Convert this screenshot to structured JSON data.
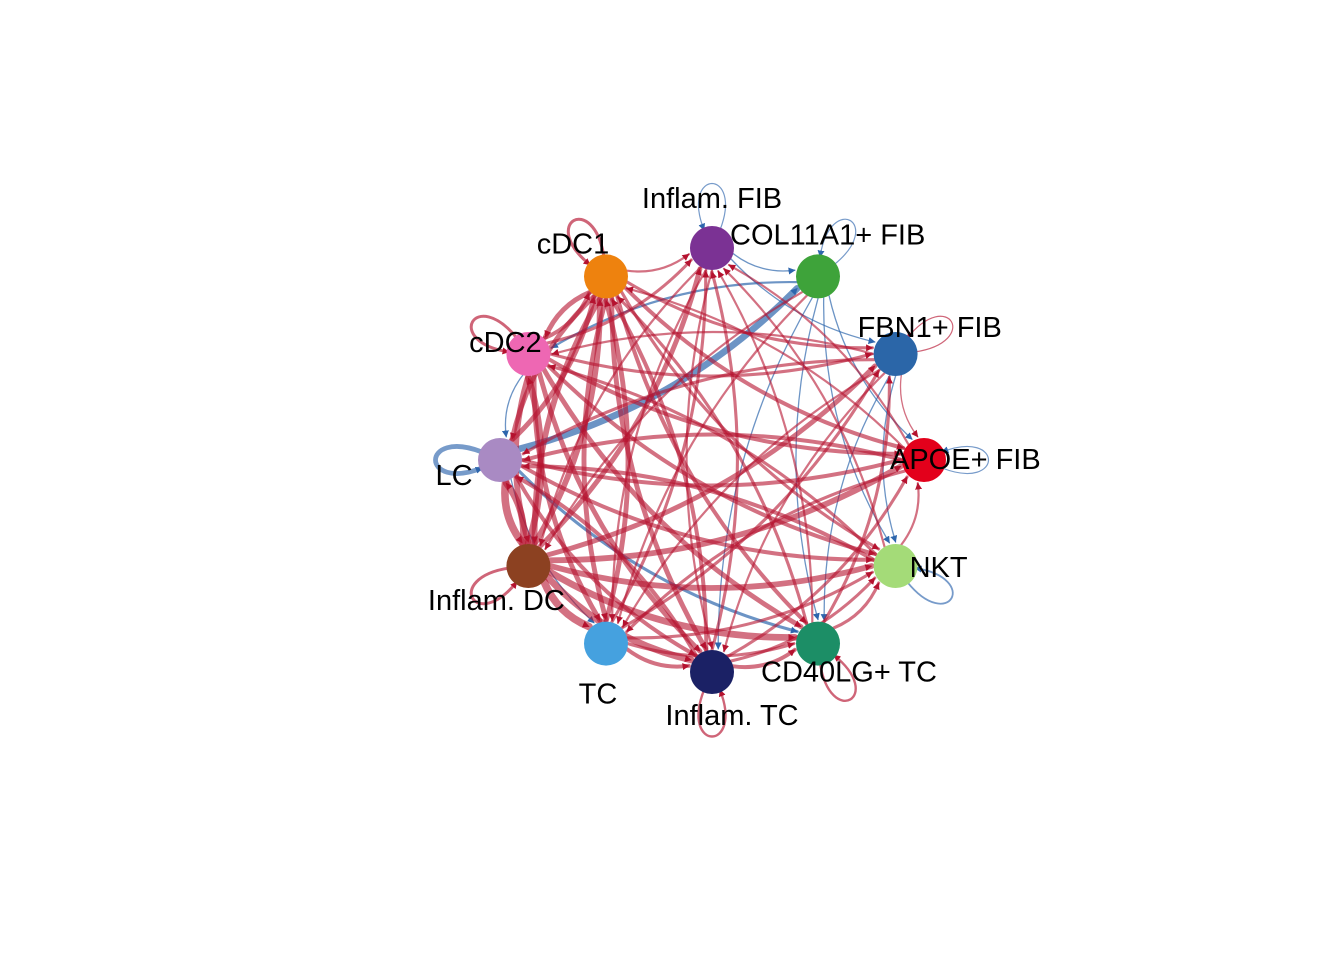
{
  "diagram": {
    "type": "circle-network",
    "edge_colors": {
      "increased": "#b5122f",
      "decreased": "#2e66ad"
    },
    "nodes": [
      {
        "id": "inflam_fib",
        "label": "Inflam. FIB",
        "color": "#7b3294"
      },
      {
        "id": "col11a1_fib",
        "label": "COL11A1+ FIB",
        "color": "#3ea33a"
      },
      {
        "id": "fbn1_fib",
        "label": "FBN1+ FIB",
        "color": "#2b66a8"
      },
      {
        "id": "apoe_fib",
        "label": "APOE+ FIB",
        "color": "#e3001b"
      },
      {
        "id": "nkt",
        "label": "NKT",
        "color": "#a4db78"
      },
      {
        "id": "cd40lg_tc",
        "label": "CD40LG+ TC",
        "color": "#1c8e66"
      },
      {
        "id": "inflam_tc",
        "label": "Inflam. TC",
        "color": "#1b2165"
      },
      {
        "id": "tc",
        "label": "TC",
        "color": "#45a1df"
      },
      {
        "id": "inflam_dc",
        "label": "Inflam. DC",
        "color": "#8c4121"
      },
      {
        "id": "lc",
        "label": "LC",
        "color": "#a98ac3"
      },
      {
        "id": "cdc2",
        "label": "cDC2",
        "color": "#ee67b3"
      },
      {
        "id": "cdc1",
        "label": "cDC1",
        "color": "#ee820e"
      }
    ],
    "self_loops": [
      {
        "node": "inflam_fib",
        "direction": "decreased",
        "weight": 1
      },
      {
        "node": "col11a1_fib",
        "direction": "decreased",
        "weight": 1
      },
      {
        "node": "fbn1_fib",
        "direction": "increased",
        "weight": 1
      },
      {
        "node": "apoe_fib",
        "direction": "decreased",
        "weight": 1
      },
      {
        "node": "nkt",
        "direction": "decreased",
        "weight": 2
      },
      {
        "node": "cd40lg_tc",
        "direction": "increased",
        "weight": 3
      },
      {
        "node": "inflam_tc",
        "direction": "increased",
        "weight": 3
      },
      {
        "node": "inflam_dc",
        "direction": "increased",
        "weight": 4
      },
      {
        "node": "lc",
        "direction": "decreased",
        "weight": 7
      },
      {
        "node": "cdc2",
        "direction": "increased",
        "weight": 4
      },
      {
        "node": "cdc1",
        "direction": "increased",
        "weight": 4
      }
    ],
    "edges": [
      {
        "from": "lc",
        "to": "col11a1_fib",
        "direction": "decreased",
        "weight": 7
      },
      {
        "from": "lc",
        "to": "cd40lg_tc",
        "direction": "decreased",
        "weight": 3
      },
      {
        "from": "col11a1_fib",
        "to": "cdc2",
        "direction": "decreased",
        "weight": 2
      },
      {
        "from": "col11a1_fib",
        "to": "nkt",
        "direction": "decreased",
        "weight": 1
      },
      {
        "from": "col11a1_fib",
        "to": "apoe_fib",
        "direction": "decreased",
        "weight": 1
      },
      {
        "from": "col11a1_fib",
        "to": "cd40lg_tc",
        "direction": "decreased",
        "weight": 1
      },
      {
        "from": "col11a1_fib",
        "to": "inflam_tc",
        "direction": "decreased",
        "weight": 1
      },
      {
        "from": "inflam_fib",
        "to": "col11a1_fib",
        "direction": "decreased",
        "weight": 1
      },
      {
        "from": "inflam_fib",
        "to": "fbn1_fib",
        "direction": "decreased",
        "weight": 1
      },
      {
        "from": "fbn1_fib",
        "to": "nkt",
        "direction": "decreased",
        "weight": 1
      },
      {
        "from": "fbn1_fib",
        "to": "cd40lg_tc",
        "direction": "decreased",
        "weight": 1
      },
      {
        "from": "fbn1_fib",
        "to": "apoe_fib",
        "direction": "increased",
        "weight": 1
      },
      {
        "from": "cdc2",
        "to": "lc",
        "direction": "decreased",
        "weight": 1
      },
      {
        "from": "lc",
        "to": "tc",
        "direction": "decreased",
        "weight": 1
      },
      {
        "from": "cdc1",
        "to": "cdc2",
        "direction": "increased",
        "weight": 5
      },
      {
        "from": "cdc1",
        "to": "lc",
        "direction": "increased",
        "weight": 5
      },
      {
        "from": "cdc1",
        "to": "inflam_dc",
        "direction": "increased",
        "weight": 6
      },
      {
        "from": "cdc1",
        "to": "tc",
        "direction": "increased",
        "weight": 5
      },
      {
        "from": "cdc1",
        "to": "inflam_tc",
        "direction": "increased",
        "weight": 5
      },
      {
        "from": "cdc1",
        "to": "cd40lg_tc",
        "direction": "increased",
        "weight": 4
      },
      {
        "from": "cdc1",
        "to": "nkt",
        "direction": "increased",
        "weight": 3
      },
      {
        "from": "cdc1",
        "to": "apoe_fib",
        "direction": "increased",
        "weight": 4
      },
      {
        "from": "cdc1",
        "to": "fbn1_fib",
        "direction": "increased",
        "weight": 3
      },
      {
        "from": "cdc1",
        "to": "inflam_fib",
        "direction": "increased",
        "weight": 2
      },
      {
        "from": "cdc2",
        "to": "inflam_dc",
        "direction": "increased",
        "weight": 6
      },
      {
        "from": "cdc2",
        "to": "tc",
        "direction": "increased",
        "weight": 5
      },
      {
        "from": "cdc2",
        "to": "inflam_tc",
        "direction": "increased",
        "weight": 5
      },
      {
        "from": "cdc2",
        "to": "cd40lg_tc",
        "direction": "increased",
        "weight": 5
      },
      {
        "from": "cdc2",
        "to": "nkt",
        "direction": "increased",
        "weight": 4
      },
      {
        "from": "cdc2",
        "to": "apoe_fib",
        "direction": "increased",
        "weight": 4
      },
      {
        "from": "cdc2",
        "to": "fbn1_fib",
        "direction": "increased",
        "weight": 3
      },
      {
        "from": "cdc2",
        "to": "inflam_fib",
        "direction": "increased",
        "weight": 3
      },
      {
        "from": "cdc2",
        "to": "cdc1",
        "direction": "increased",
        "weight": 4
      },
      {
        "from": "inflam_dc",
        "to": "tc",
        "direction": "increased",
        "weight": 8
      },
      {
        "from": "inflam_dc",
        "to": "inflam_tc",
        "direction": "increased",
        "weight": 7
      },
      {
        "from": "inflam_dc",
        "to": "cd40lg_tc",
        "direction": "increased",
        "weight": 7
      },
      {
        "from": "inflam_dc",
        "to": "nkt",
        "direction": "increased",
        "weight": 6
      },
      {
        "from": "inflam_dc",
        "to": "apoe_fib",
        "direction": "increased",
        "weight": 6
      },
      {
        "from": "inflam_dc",
        "to": "fbn1_fib",
        "direction": "increased",
        "weight": 5
      },
      {
        "from": "inflam_dc",
        "to": "inflam_fib",
        "direction": "increased",
        "weight": 5
      },
      {
        "from": "inflam_dc",
        "to": "cdc1",
        "direction": "increased",
        "weight": 6
      },
      {
        "from": "inflam_dc",
        "to": "cdc2",
        "direction": "increased",
        "weight": 7
      },
      {
        "from": "inflam_dc",
        "to": "lc",
        "direction": "increased",
        "weight": 7
      },
      {
        "from": "tc",
        "to": "inflam_tc",
        "direction": "increased",
        "weight": 4
      },
      {
        "from": "tc",
        "to": "cd40lg_tc",
        "direction": "increased",
        "weight": 3
      },
      {
        "from": "tc",
        "to": "nkt",
        "direction": "increased",
        "weight": 3
      },
      {
        "from": "tc",
        "to": "fbn1_fib",
        "direction": "increased",
        "weight": 3
      },
      {
        "from": "tc",
        "to": "inflam_fib",
        "direction": "increased",
        "weight": 3
      },
      {
        "from": "tc",
        "to": "cdc1",
        "direction": "increased",
        "weight": 5
      },
      {
        "from": "inflam_tc",
        "to": "cd40lg_tc",
        "direction": "increased",
        "weight": 4
      },
      {
        "from": "inflam_tc",
        "to": "nkt",
        "direction": "increased",
        "weight": 3
      },
      {
        "from": "inflam_tc",
        "to": "apoe_fib",
        "direction": "increased",
        "weight": 3
      },
      {
        "from": "inflam_tc",
        "to": "inflam_fib",
        "direction": "increased",
        "weight": 3
      },
      {
        "from": "inflam_tc",
        "to": "cdc1",
        "direction": "increased",
        "weight": 4
      },
      {
        "from": "inflam_tc",
        "to": "lc",
        "direction": "increased",
        "weight": 4
      },
      {
        "from": "cd40lg_tc",
        "to": "nkt",
        "direction": "increased",
        "weight": 3
      },
      {
        "from": "cd40lg_tc",
        "to": "fbn1_fib",
        "direction": "increased",
        "weight": 3
      },
      {
        "from": "cd40lg_tc",
        "to": "inflam_fib",
        "direction": "increased",
        "weight": 2
      },
      {
        "from": "cd40lg_tc",
        "to": "cdc1",
        "direction": "increased",
        "weight": 3
      },
      {
        "from": "nkt",
        "to": "apoe_fib",
        "direction": "increased",
        "weight": 2
      },
      {
        "from": "nkt",
        "to": "inflam_fib",
        "direction": "increased",
        "weight": 2
      },
      {
        "from": "nkt",
        "to": "cdc2",
        "direction": "increased",
        "weight": 3
      },
      {
        "from": "nkt",
        "to": "lc",
        "direction": "increased",
        "weight": 4
      },
      {
        "from": "apoe_fib",
        "to": "inflam_fib",
        "direction": "increased",
        "weight": 2
      },
      {
        "from": "apoe_fib",
        "to": "cdc1",
        "direction": "increased",
        "weight": 2
      },
      {
        "from": "apoe_fib",
        "to": "lc",
        "direction": "increased",
        "weight": 4
      },
      {
        "from": "apoe_fib",
        "to": "tc",
        "direction": "increased",
        "weight": 3
      },
      {
        "from": "fbn1_fib",
        "to": "cdc2",
        "direction": "increased",
        "weight": 2
      },
      {
        "from": "fbn1_fib",
        "to": "lc",
        "direction": "increased",
        "weight": 3
      },
      {
        "from": "fbn1_fib",
        "to": "tc",
        "direction": "increased",
        "weight": 2
      },
      {
        "from": "fbn1_fib",
        "to": "inflam_tc",
        "direction": "increased",
        "weight": 2
      },
      {
        "from": "col11a1_fib",
        "to": "tc",
        "direction": "increased",
        "weight": 2
      },
      {
        "from": "col11a1_fib",
        "to": "inflam_dc",
        "direction": "increased",
        "weight": 2
      },
      {
        "from": "inflam_fib",
        "to": "inflam_tc",
        "direction": "increased",
        "weight": 2
      },
      {
        "from": "inflam_fib",
        "to": "tc",
        "direction": "increased",
        "weight": 2
      },
      {
        "from": "inflam_fib",
        "to": "inflam_dc",
        "direction": "increased",
        "weight": 2
      },
      {
        "from": "lc",
        "to": "inflam_dc",
        "direction": "increased",
        "weight": 8
      },
      {
        "from": "lc",
        "to": "inflam_tc",
        "direction": "increased",
        "weight": 4
      },
      {
        "from": "lc",
        "to": "nkt",
        "direction": "increased",
        "weight": 4
      },
      {
        "from": "lc",
        "to": "apoe_fib",
        "direction": "increased",
        "weight": 4
      },
      {
        "from": "lc",
        "to": "cdc1",
        "direction": "increased",
        "weight": 5
      }
    ]
  }
}
